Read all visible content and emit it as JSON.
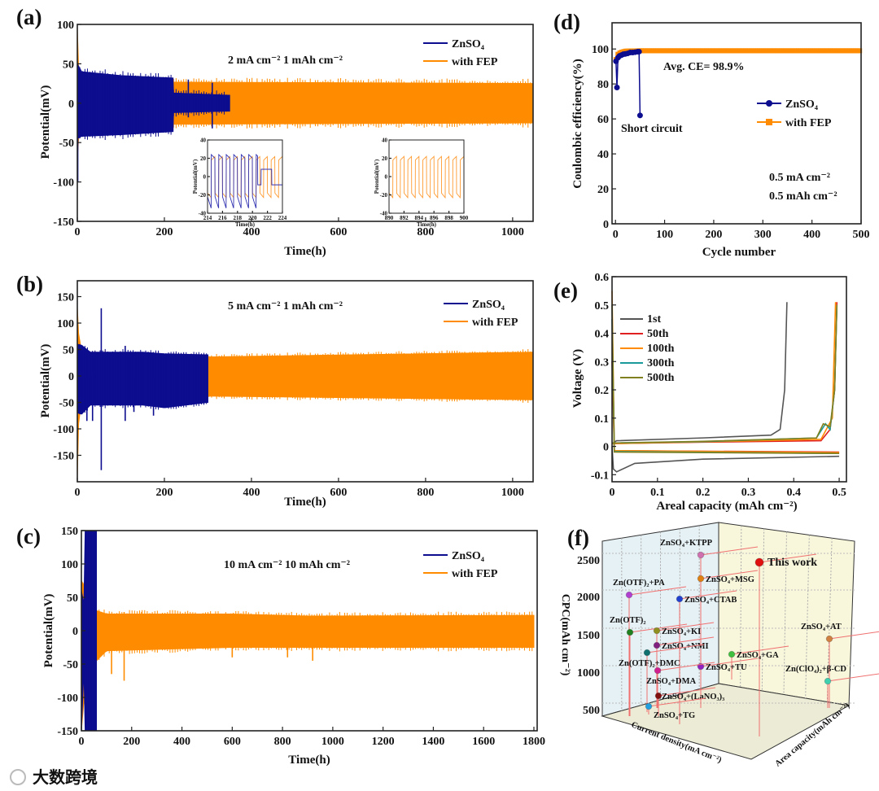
{
  "watermark": "大数跨境",
  "chart_data": [
    {
      "id": "a",
      "panel_label": "(a)",
      "type": "line",
      "xlabel": "Time(h)",
      "ylabel": "Potential(mV)",
      "xlim": [
        0,
        1047
      ],
      "ylim": [
        -150,
        100
      ],
      "xticks": [
        0,
        200,
        400,
        600,
        800,
        1000
      ],
      "yticks": [
        -150,
        -100,
        -50,
        0,
        50,
        100
      ],
      "annotation": "2 mA cm⁻²   1 mAh cm⁻²",
      "series": [
        {
          "name": "with FEP",
          "color": "#ff8c00",
          "envelope": [
            [
              0,
              95,
              -70
            ],
            [
              3,
              45,
              -45
            ],
            [
              8,
              30,
              -30
            ],
            [
              100,
              27,
              -27
            ],
            [
              1050,
              25,
              -25
            ]
          ],
          "spikes": []
        },
        {
          "name": "ZnSO₄",
          "color": "#0d0d8f",
          "envelope": [
            [
              0,
              50,
              -45
            ],
            [
              10,
              40,
              -42
            ],
            [
              100,
              35,
              -40
            ],
            [
              220,
              32,
              -36
            ],
            [
              221,
              13,
              -12
            ],
            [
              350,
              10,
              -10
            ]
          ],
          "spikes": [
            [
              255,
              30
            ],
            [
              255,
              -18
            ],
            [
              310,
              26
            ],
            [
              310,
              -32
            ],
            [
              1,
              -100
            ]
          ]
        }
      ],
      "insets": [
        {
          "xlim": [
            214,
            224
          ],
          "ylim": [
            -40,
            40
          ],
          "xticks": [
            214,
            216,
            218,
            220,
            222,
            224
          ],
          "yticks": [
            -40,
            -20,
            0,
            20,
            40
          ],
          "xlabel": "Time(h)",
          "ylabel": "Potential(mV)",
          "blue_until": 220.7
        },
        {
          "xlim": [
            890,
            900
          ],
          "ylim": [
            -40,
            40
          ],
          "xticks": [
            890,
            892,
            894,
            896,
            898,
            900
          ],
          "yticks": [
            -40,
            -20,
            0,
            20,
            40
          ],
          "xlabel": "Time(h)",
          "ylabel": "Potential(mV)",
          "blue_until": null
        }
      ]
    },
    {
      "id": "b",
      "panel_label": "(b)",
      "type": "line",
      "xlabel": "Time(h)",
      "ylabel": "Potential(mV)",
      "xlim": [
        0,
        1047
      ],
      "ylim": [
        -200,
        180
      ],
      "xticks": [
        0,
        200,
        400,
        600,
        800,
        1000
      ],
      "yticks": [
        -150,
        -100,
        -50,
        0,
        50,
        100,
        150
      ],
      "annotation": "5 mA cm⁻²   1 mAh cm⁻²",
      "series": [
        {
          "name": "with FEP",
          "color": "#ff8c00",
          "envelope": [
            [
              0,
              130,
              -195
            ],
            [
              3,
              80,
              -90
            ],
            [
              10,
              45,
              -45
            ],
            [
              300,
              36,
              -38
            ],
            [
              1050,
              45,
              -45
            ]
          ],
          "spikes": []
        },
        {
          "name": "ZnSO₄",
          "color": "#0d0d8f",
          "envelope": [
            [
              0,
              60,
              -70
            ],
            [
              10,
              58,
              -72
            ],
            [
              30,
              45,
              -55
            ],
            [
              150,
              45,
              -55
            ],
            [
              200,
              42,
              -60
            ],
            [
              300,
              40,
              -50
            ]
          ],
          "spikes": [
            [
              55,
              128
            ],
            [
              55,
              -178
            ],
            [
              110,
              57
            ],
            [
              110,
              -85
            ],
            [
              22,
              -85
            ],
            [
              35,
              -85
            ],
            [
              175,
              -75
            ],
            [
              130,
              -68
            ]
          ]
        }
      ]
    },
    {
      "id": "c",
      "panel_label": "(c)",
      "type": "line",
      "xlabel": "Time(h)",
      "ylabel": "Potential(mV)",
      "xlim": [
        0,
        1813
      ],
      "ylim": [
        -150,
        150
      ],
      "xticks": [
        0,
        200,
        400,
        600,
        800,
        1000,
        1200,
        1400,
        1600,
        1800
      ],
      "yticks": [
        -150,
        -100,
        -50,
        0,
        50,
        100,
        150
      ],
      "annotation": "10 mA cm⁻²   10 mAh cm⁻²",
      "series": [
        {
          "name": "with FEP",
          "color": "#ff8c00",
          "envelope": [
            [
              0,
              75,
              -150
            ],
            [
              20,
              60,
              -60
            ],
            [
              60,
              30,
              -45
            ],
            [
              100,
              25,
              -30
            ],
            [
              600,
              25,
              -25
            ],
            [
              900,
              22,
              -25
            ],
            [
              1800,
              23,
              -25
            ]
          ],
          "spikes": [
            [
              170,
              -75
            ],
            [
              170,
              28
            ],
            [
              120,
              -65
            ],
            [
              240,
              28
            ],
            [
              600,
              -40
            ],
            [
              820,
              -40
            ],
            [
              920,
              -45
            ]
          ]
        },
        {
          "name": "ZnSO₄",
          "color": "#0d0d8f",
          "envelope": [
            [
              0,
              60,
              -150
            ],
            [
              10,
              40,
              -60
            ],
            [
              15,
              150,
              -150
            ],
            [
              60,
              150,
              -150
            ]
          ],
          "spikes": []
        }
      ]
    },
    {
      "id": "d",
      "panel_label": "(d)",
      "type": "scatter",
      "xlabel": "Cycle number",
      "ylabel": "Coulombic efficiency(%)",
      "xlim": [
        -7,
        500
      ],
      "ylim": [
        0,
        115
      ],
      "xticks": [
        0,
        100,
        200,
        300,
        400,
        500
      ],
      "yticks": [
        0,
        20,
        40,
        60,
        80,
        100
      ],
      "annotations": {
        "avg": "Avg. CE= 98.9%",
        "short": "Short circuit",
        "current": "0.5 mA cm⁻²",
        "capacity": "0.5 mAh cm⁻²"
      },
      "series": [
        {
          "name": "with FEP",
          "color": "#ff8c00",
          "marker": "square",
          "points": [
            [
              1,
              94
            ],
            [
              3,
              96
            ],
            [
              5,
              97
            ],
            [
              10,
              98
            ],
            [
              20,
              98.8
            ],
            [
              50,
              99
            ],
            [
              100,
              99
            ],
            [
              200,
              99
            ],
            [
              300,
              99
            ],
            [
              400,
              99
            ],
            [
              500,
              99
            ]
          ]
        },
        {
          "name": "ZnSO₄",
          "color": "#0d0d8f",
          "marker": "circle",
          "points": [
            [
              1,
              93
            ],
            [
              3,
              78
            ],
            [
              5,
              95
            ],
            [
              8,
              96
            ],
            [
              12,
              96.5
            ],
            [
              16,
              97
            ],
            [
              20,
              97.2
            ],
            [
              25,
              97.5
            ],
            [
              30,
              98
            ],
            [
              35,
              98
            ],
            [
              40,
              98.2
            ],
            [
              45,
              98.5
            ],
            [
              48,
              98.5
            ],
            [
              50,
              62
            ]
          ]
        }
      ]
    },
    {
      "id": "e",
      "panel_label": "(e)",
      "type": "line",
      "xlabel": "Areal capacity (mAh cm⁻²)",
      "ylabel": "Voltage (V)",
      "xlim": [
        0,
        0.516
      ],
      "ylim": [
        -0.125,
        0.6
      ],
      "xticks": [
        0,
        0.1,
        0.2,
        0.3,
        0.4,
        0.5
      ],
      "yticks": [
        -0.1,
        0,
        0.1,
        0.2,
        0.3,
        0.4,
        0.5,
        0.6
      ],
      "series": [
        {
          "name": "1st",
          "color": "#555555",
          "curves": [
            [
              [
                0,
                0
              ],
              [
                0.003,
                -0.08
              ],
              [
                0.01,
                -0.09
              ],
              [
                0.05,
                -0.06
              ],
              [
                0.2,
                -0.045
              ],
              [
                0.5,
                -0.035
              ]
            ],
            [
              [
                0,
                0.01
              ],
              [
                0.01,
                0.02
              ],
              [
                0.2,
                0.03
              ],
              [
                0.35,
                0.04
              ],
              [
                0.37,
                0.06
              ],
              [
                0.38,
                0.2
              ],
              [
                0.385,
                0.51
              ]
            ]
          ]
        },
        {
          "name": "50th",
          "color": "#e02020",
          "curves": [
            [
              [
                0,
                0.3
              ],
              [
                0.005,
                -0.015
              ],
              [
                0.5,
                -0.02
              ]
            ],
            [
              [
                0,
                0.01
              ],
              [
                0.2,
                0.015
              ],
              [
                0.46,
                0.02
              ],
              [
                0.48,
                0.06
              ],
              [
                0.49,
                0.2
              ],
              [
                0.495,
                0.51
              ]
            ]
          ]
        },
        {
          "name": "100th",
          "color": "#ff8c00",
          "curves": [
            [
              [
                0,
                0.55
              ],
              [
                0.005,
                -0.015
              ],
              [
                0.5,
                -0.022
              ]
            ],
            [
              [
                0,
                0.01
              ],
              [
                0.2,
                0.016
              ],
              [
                0.46,
                0.025
              ],
              [
                0.485,
                0.1
              ],
              [
                0.492,
                0.51
              ]
            ]
          ]
        },
        {
          "name": "300th",
          "color": "#1a9a9a",
          "curves": [
            [
              [
                0,
                0.45
              ],
              [
                0.005,
                -0.018
              ],
              [
                0.5,
                -0.025
              ]
            ],
            [
              [
                0,
                0.012
              ],
              [
                0.2,
                0.017
              ],
              [
                0.45,
                0.03
              ],
              [
                0.47,
                0.08
              ],
              [
                0.48,
                0.06
              ],
              [
                0.49,
                0.2
              ],
              [
                0.495,
                0.5
              ]
            ]
          ]
        },
        {
          "name": "500th",
          "color": "#808020",
          "curves": [
            [
              [
                0,
                0.5
              ],
              [
                0.005,
                -0.02
              ],
              [
                0.5,
                -0.025
              ]
            ],
            [
              [
                0,
                0.012
              ],
              [
                0.2,
                0.018
              ],
              [
                0.45,
                0.03
              ],
              [
                0.465,
                0.08
              ],
              [
                0.48,
                0.07
              ],
              [
                0.49,
                0.2
              ],
              [
                0.495,
                0.5
              ]
            ]
          ]
        }
      ]
    },
    {
      "id": "f",
      "panel_label": "(f)",
      "type": "scatter",
      "zlabel": "CPC(mAh cm⁻²)",
      "xlabel": "Current density(mA cm⁻²)",
      "ylabel": "Area capacity(mAh cm⁻²)",
      "zticks": [
        500,
        1000,
        1500,
        2000,
        2500
      ],
      "points": [
        {
          "name": "ZnSO₄+KTPP",
          "cpc": 2550,
          "color": "#d070b0"
        },
        {
          "name": "This work",
          "cpc": 2450,
          "color": "#e01010"
        },
        {
          "name": "ZnSO₄+MSG",
          "cpc": 2250,
          "color": "#e08010"
        },
        {
          "name": "Zn(OTF)₂+PA",
          "cpc": 2050,
          "color": "#b040d0"
        },
        {
          "name": "ZnSO₄+CTAB",
          "cpc": 2000,
          "color": "#2040d0"
        },
        {
          "name": "Zn(OTF)₂",
          "cpc": 1550,
          "color": "#208020"
        },
        {
          "name": "ZnSO₄+KI",
          "cpc": 1550,
          "color": "#909020"
        },
        {
          "name": "ZnSO₄+NMI",
          "cpc": 1350,
          "color": "#802080"
        },
        {
          "name": "ZnSO₄+AT",
          "cpc": 1450,
          "color": "#d08040"
        },
        {
          "name": "Zn(OTF)₂+DMC",
          "cpc": 1250,
          "color": "#107070"
        },
        {
          "name": "ZnSO₄+GA",
          "cpc": 1250,
          "color": "#40c040"
        },
        {
          "name": "ZnSO₄+TU",
          "cpc": 1050,
          "color": "#9020c0"
        },
        {
          "name": "ZnSO₄+DMA",
          "cpc": 1000,
          "color": "#d02090"
        },
        {
          "name": "Zn(ClO₄)₂+β-CD",
          "cpc": 900,
          "color": "#40d0b0"
        },
        {
          "name": "ZnSO₄+(LaNO₃)₃",
          "cpc": 700,
          "color": "#801010"
        },
        {
          "name": "ZnSO₄+TG",
          "cpc": 550,
          "color": "#20a0e0"
        }
      ]
    }
  ]
}
